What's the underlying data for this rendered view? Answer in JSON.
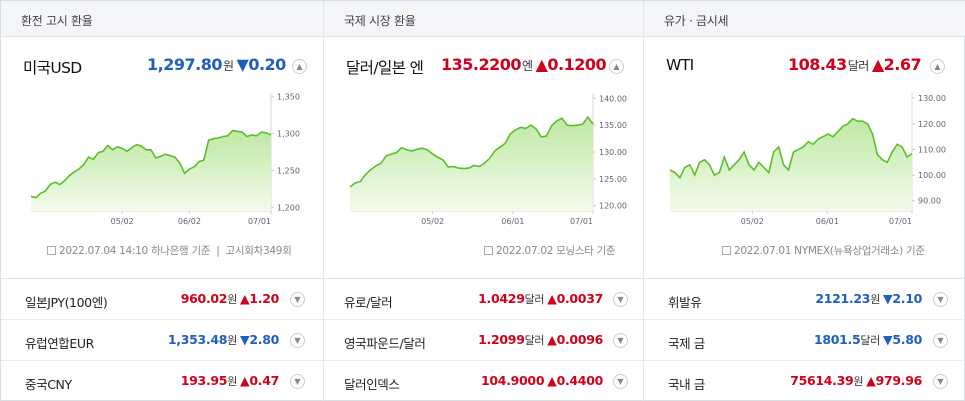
{
  "panels": [
    {
      "tab": "환전 고시 환율",
      "main": {
        "name": "미국USD",
        "value": "1,297.80",
        "unit": "원",
        "arrow": "▼",
        "change": "0.20",
        "dir": "down"
      },
      "basis": "2022.07.04 14:10 하나은행 기준",
      "basis_extra": "고시회차349회",
      "list": [
        {
          "name": "일본JPY(100엔)",
          "value": "960.02",
          "unit": "원",
          "arrow": "▲",
          "change": "1.20",
          "dir": "up"
        },
        {
          "name": "유럽연합EUR",
          "value": "1,353.48",
          "unit": "원",
          "arrow": "▼",
          "change": "2.80",
          "dir": "down"
        },
        {
          "name": "중국CNY",
          "value": "193.95",
          "unit": "원",
          "arrow": "▲",
          "change": "0.47",
          "dir": "up"
        }
      ]
    },
    {
      "tab": "국제 시장 환율",
      "main": {
        "name": "달러/일본 엔",
        "value": "135.2200",
        "unit": "엔",
        "arrow": "▲",
        "change": "0.1200",
        "dir": "up"
      },
      "basis": "2022.07.02 모닝스타 기준",
      "list": [
        {
          "name": "유로/달러",
          "value": "1.0429",
          "unit": "달러",
          "arrow": "▲",
          "change": "0.0037",
          "dir": "up"
        },
        {
          "name": "영국파운드/달러",
          "value": "1.2099",
          "unit": "달러",
          "arrow": "▲",
          "change": "0.0096",
          "dir": "up"
        },
        {
          "name": "달러인덱스",
          "value": "104.9000",
          "unit": "",
          "arrow": "▲",
          "change": "0.4400",
          "dir": "up"
        }
      ]
    },
    {
      "tab": "유가 · 금시세",
      "main": {
        "name": "WTI",
        "value": "108.43",
        "unit": "달러",
        "arrow": "▲",
        "change": "2.67",
        "dir": "up"
      },
      "basis": "2022.07.01 NYMEX(뉴욕상업거래소) 기준",
      "list": [
        {
          "name": "휘발유",
          "value": "2121.23",
          "unit": "원",
          "arrow": "▼",
          "change": "2.10",
          "dir": "down"
        },
        {
          "name": "국제 금",
          "value": "1801.5",
          "unit": "달러",
          "arrow": "▼",
          "change": "5.80",
          "dir": "down"
        },
        {
          "name": "국내 금",
          "value": "75614.39",
          "unit": "원",
          "arrow": "▲",
          "change": "979.96",
          "dir": "up"
        }
      ]
    }
  ],
  "colors": {
    "up": "#d0021b",
    "down": "#1f5fbf",
    "line": "#5cbf2a",
    "fill_top": "#bfe8a4",
    "fill_bottom": "#f2fbec"
  },
  "icons": {
    "toggle": "chevron-up-icon",
    "basis": "document-icon"
  },
  "chart_data": [
    {
      "type": "area",
      "title": "",
      "x_ticks": [
        "05/02",
        "06/02",
        "07/01"
      ],
      "y_ticks": [
        1200,
        1250,
        1300,
        1350
      ],
      "ylim": [
        1195,
        1355
      ],
      "series": [
        {
          "values": [
            1215,
            1213,
            1219,
            1222,
            1231,
            1234,
            1231,
            1236,
            1243,
            1248,
            1252,
            1258,
            1268,
            1265,
            1274,
            1276,
            1284,
            1278,
            1282,
            1280,
            1276,
            1281,
            1285,
            1283,
            1278,
            1278,
            1267,
            1269,
            1272,
            1270,
            1268,
            1260,
            1246,
            1252,
            1255,
            1262,
            1264,
            1291,
            1293,
            1294,
            1296,
            1297,
            1304,
            1303,
            1302,
            1296,
            1298,
            1297,
            1302,
            1301,
            1298
          ]
        }
      ]
    },
    {
      "type": "area",
      "title": "",
      "x_ticks": [
        "05/02",
        "06/01",
        "07/01"
      ],
      "y_ticks": [
        120,
        125,
        130,
        135,
        140
      ],
      "ylim": [
        119,
        141
      ],
      "series": [
        {
          "values": [
            123.5,
            124.2,
            124.5,
            125.8,
            126.7,
            127.4,
            127.9,
            129.3,
            129.6,
            129.9,
            130.8,
            130.4,
            130.2,
            130.5,
            130.7,
            130.4,
            129.6,
            129.0,
            128.5,
            127.2,
            127.3,
            127.0,
            126.9,
            127.0,
            127.5,
            127.3,
            127.9,
            128.8,
            130.2,
            130.9,
            131.6,
            133.4,
            134.1,
            134.6,
            134.4,
            135.0,
            134.3,
            132.8,
            133.0,
            134.9,
            135.8,
            136.3,
            135.0,
            134.9,
            135.0,
            135.2,
            136.5,
            135.2
          ]
        }
      ]
    },
    {
      "type": "area",
      "title": "",
      "x_ticks": [
        "05/02",
        "06/01",
        "07/01"
      ],
      "y_ticks": [
        90,
        100,
        110,
        120,
        130
      ],
      "ylim": [
        86,
        132
      ],
      "series": [
        {
          "values": [
            102,
            101,
            99,
            103,
            104,
            100,
            105,
            106,
            104,
            100,
            101,
            107,
            102,
            104,
            106,
            109,
            104,
            102,
            105,
            103,
            101,
            109,
            111,
            104,
            102,
            109,
            110,
            111,
            113,
            112,
            114,
            115,
            116,
            115,
            117,
            119,
            120,
            122,
            121,
            121,
            120,
            116,
            108,
            106,
            105,
            109,
            112,
            111,
            107,
            108.43
          ]
        }
      ]
    }
  ]
}
